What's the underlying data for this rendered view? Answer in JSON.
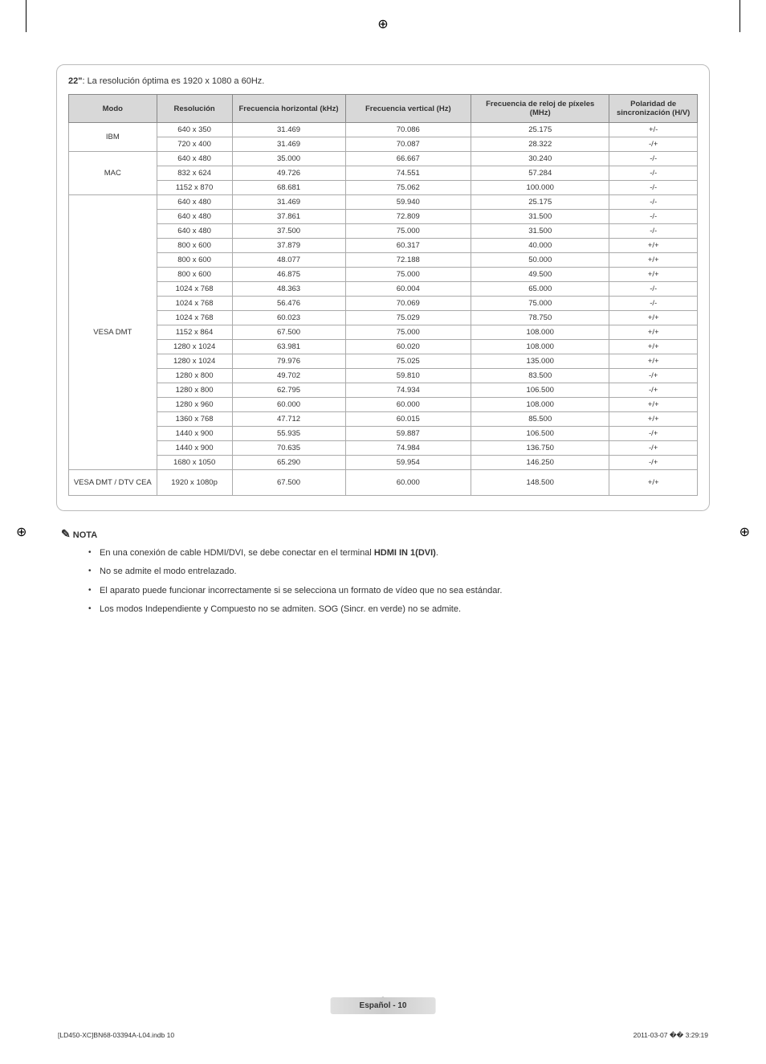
{
  "registration_marks": {
    "top": "⊕",
    "left": "⊕",
    "right": "⊕",
    "bottom": "⊕"
  },
  "title": {
    "bold": "22\"",
    "rest": ": La resolución óptima es 1920 x 1080 a 60Hz."
  },
  "table": {
    "headers": [
      "Modo",
      "Resolución",
      "Frecuencia horizontal (kHz)",
      "Frecuencia vertical (Hz)",
      "Frecuencia de reloj de píxeles (MHz)",
      "Polaridad de sincronización (H/V)"
    ],
    "col_widths": [
      "14%",
      "12%",
      "18%",
      "20%",
      "22%",
      "14%"
    ],
    "groups": [
      {
        "mode": "IBM",
        "rows": [
          [
            "640 x 350",
            "31.469",
            "70.086",
            "25.175",
            "+/-"
          ],
          [
            "720 x 400",
            "31.469",
            "70.087",
            "28.322",
            "-/+"
          ]
        ]
      },
      {
        "mode": "MAC",
        "rows": [
          [
            "640 x 480",
            "35.000",
            "66.667",
            "30.240",
            "-/-"
          ],
          [
            "832 x 624",
            "49.726",
            "74.551",
            "57.284",
            "-/-"
          ],
          [
            "1152 x 870",
            "68.681",
            "75.062",
            "100.000",
            "-/-"
          ]
        ]
      },
      {
        "mode": "VESA DMT",
        "rows": [
          [
            "640 x 480",
            "31.469",
            "59.940",
            "25.175",
            "-/-"
          ],
          [
            "640 x 480",
            "37.861",
            "72.809",
            "31.500",
            "-/-"
          ],
          [
            "640 x 480",
            "37.500",
            "75.000",
            "31.500",
            "-/-"
          ],
          [
            "800 x 600",
            "37.879",
            "60.317",
            "40.000",
            "+/+"
          ],
          [
            "800 x 600",
            "48.077",
            "72.188",
            "50.000",
            "+/+"
          ],
          [
            "800 x 600",
            "46.875",
            "75.000",
            "49.500",
            "+/+"
          ],
          [
            "1024 x 768",
            "48.363",
            "60.004",
            "65.000",
            "-/-"
          ],
          [
            "1024 x 768",
            "56.476",
            "70.069",
            "75.000",
            "-/-"
          ],
          [
            "1024 x 768",
            "60.023",
            "75.029",
            "78.750",
            "+/+"
          ],
          [
            "1152 x 864",
            "67.500",
            "75.000",
            "108.000",
            "+/+"
          ],
          [
            "1280 x 1024",
            "63.981",
            "60.020",
            "108.000",
            "+/+"
          ],
          [
            "1280 x 1024",
            "79.976",
            "75.025",
            "135.000",
            "+/+"
          ],
          [
            "1280 x 800",
            "49.702",
            "59.810",
            "83.500",
            "-/+"
          ],
          [
            "1280 x 800",
            "62.795",
            "74.934",
            "106.500",
            "-/+"
          ],
          [
            "1280 x 960",
            "60.000",
            "60.000",
            "108.000",
            "+/+"
          ],
          [
            "1360 x 768",
            "47.712",
            "60.015",
            "85.500",
            "+/+"
          ],
          [
            "1440 x 900",
            "55.935",
            "59.887",
            "106.500",
            "-/+"
          ],
          [
            "1440 x 900",
            "70.635",
            "74.984",
            "136.750",
            "-/+"
          ],
          [
            "1680 x 1050",
            "65.290",
            "59.954",
            "146.250",
            "-/+"
          ]
        ]
      },
      {
        "mode": "VESA DMT / DTV CEA",
        "rows": [
          [
            "1920 x 1080p",
            "67.500",
            "60.000",
            "148.500",
            "+/+"
          ]
        ]
      }
    ]
  },
  "nota": {
    "title": "NOTA",
    "writing_icon": "✎",
    "items": [
      {
        "pre": "En una conexión de cable HDMI/DVI, se debe conectar en el terminal ",
        "bold": "HDMI IN 1(DVI)",
        "post": "."
      },
      {
        "pre": "No se admite el modo entrelazado.",
        "bold": "",
        "post": ""
      },
      {
        "pre": "El aparato puede funcionar incorrectamente si se selecciona un formato de vídeo que no sea estándar.",
        "bold": "",
        "post": ""
      },
      {
        "pre": "Los modos Independiente y Compuesto no se admiten. SOG (Sincr. en verde) no se admite.",
        "bold": "",
        "post": ""
      }
    ]
  },
  "footer": {
    "lang": "Español - ",
    "page": "10"
  },
  "bottom_left": "[LD450-XC]BN68-03394A-L04.indb   10",
  "bottom_right": "2011-03-07   �� 3:29:19"
}
